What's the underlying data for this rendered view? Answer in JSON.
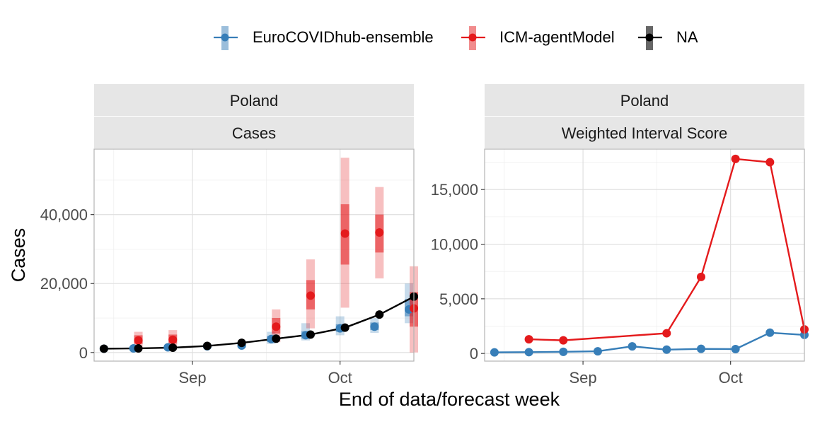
{
  "legend": {
    "entries": [
      {
        "name": "EuroCOVIDhub-ensemble",
        "color": "#377EB8"
      },
      {
        "name": "ICM-agentModel",
        "color": "#E41A1C"
      },
      {
        "name": "NA",
        "color": "#000000"
      }
    ]
  },
  "xlabel": "End of data/forecast week",
  "ylabel": "Cases",
  "chart_data": [
    {
      "type": "line",
      "strip_top": "Poland",
      "strip_bottom": "Cases",
      "x_ticks": [
        "2021-09-01",
        "2021-10-01"
      ],
      "x_tick_labels": [
        "Sep",
        "Oct"
      ],
      "xlim": [
        "2021-08-12",
        "2021-10-16"
      ],
      "y_ticks": [
        0,
        20000,
        40000
      ],
      "y_tick_labels": [
        "0",
        "20,000",
        "40,000"
      ],
      "ylim": [
        -2500,
        59000
      ],
      "truth": {
        "name": "NA",
        "x": [
          "2021-08-14",
          "2021-08-21",
          "2021-08-28",
          "2021-09-04",
          "2021-09-11",
          "2021-09-18",
          "2021-09-25",
          "2021-10-02",
          "2021-10-09",
          "2021-10-16"
        ],
        "y": [
          1100,
          1200,
          1400,
          1900,
          2800,
          4000,
          5200,
          7200,
          11000,
          16200
        ]
      },
      "series": [
        {
          "name": "EuroCOVIDhub-ensemble",
          "x": [
            "2021-08-14",
            "2021-08-20",
            "2021-08-27",
            "2021-09-04",
            "2021-09-11",
            "2021-09-17",
            "2021-09-24",
            "2021-10-01",
            "2021-10-08",
            "2021-10-15"
          ],
          "median": [
            1100,
            1200,
            1500,
            1800,
            2000,
            3900,
            5000,
            7000,
            7500,
            12500
          ],
          "inner": [
            [
              900,
              1300
            ],
            [
              1000,
              1400
            ],
            [
              1300,
              1700
            ],
            [
              1500,
              2100
            ],
            [
              1600,
              2500
            ],
            [
              3000,
              4800
            ],
            [
              4000,
              6200
            ],
            [
              6000,
              8200
            ],
            [
              6500,
              8700
            ],
            [
              10500,
              15500
            ]
          ],
          "outer": [
            [
              700,
              1500
            ],
            [
              800,
              1600
            ],
            [
              1100,
              1900
            ],
            [
              1200,
              2400
            ],
            [
              1300,
              3000
            ],
            [
              2500,
              6000
            ],
            [
              3500,
              8500
            ],
            [
              5000,
              10500
            ],
            [
              5700,
              10000
            ],
            [
              8500,
              20000
            ]
          ]
        },
        {
          "name": "ICM-agentModel",
          "x": [
            "2021-08-21",
            "2021-08-28",
            "2021-09-18",
            "2021-09-25",
            "2021-10-02",
            "2021-10-09",
            "2021-10-16"
          ],
          "median": [
            3500,
            3700,
            7500,
            16500,
            34500,
            34800,
            12800
          ],
          "inner": [
            [
              2500,
              5000
            ],
            [
              2600,
              5200
            ],
            [
              5500,
              10000
            ],
            [
              12500,
              21000
            ],
            [
              25500,
              43000
            ],
            [
              29000,
              40000
            ],
            [
              7500,
              17500
            ]
          ],
          "outer": [
            [
              1500,
              6000
            ],
            [
              1500,
              6500
            ],
            [
              3000,
              12500
            ],
            [
              7000,
              27000
            ],
            [
              13000,
              56500
            ],
            [
              21500,
              48000
            ],
            [
              0,
              25000
            ]
          ]
        }
      ]
    },
    {
      "type": "line",
      "strip_top": "Poland",
      "strip_bottom": "Weighted Interval Score",
      "x_ticks": [
        "2021-09-01",
        "2021-10-01"
      ],
      "x_tick_labels": [
        "Sep",
        "Oct"
      ],
      "xlim": [
        "2021-08-12",
        "2021-10-16"
      ],
      "y_ticks": [
        0,
        5000,
        10000,
        15000
      ],
      "y_tick_labels": [
        "0",
        "5,000",
        "10,000",
        "15,000"
      ],
      "ylim": [
        -700,
        18700
      ],
      "series": [
        {
          "name": "EuroCOVIDhub-ensemble",
          "x": [
            "2021-08-14",
            "2021-08-21",
            "2021-08-28",
            "2021-09-04",
            "2021-09-11",
            "2021-09-18",
            "2021-09-25",
            "2021-10-02",
            "2021-10-09",
            "2021-10-16"
          ],
          "values": [
            100,
            120,
            150,
            200,
            650,
            350,
            420,
            400,
            1900,
            1700
          ]
        },
        {
          "name": "ICM-agentModel",
          "x": [
            "2021-08-21",
            "2021-08-28",
            "2021-09-18",
            "2021-09-25",
            "2021-10-02",
            "2021-10-09",
            "2021-10-16"
          ],
          "values": [
            1300,
            1200,
            1850,
            7000,
            17800,
            17500,
            2200
          ]
        }
      ]
    }
  ]
}
